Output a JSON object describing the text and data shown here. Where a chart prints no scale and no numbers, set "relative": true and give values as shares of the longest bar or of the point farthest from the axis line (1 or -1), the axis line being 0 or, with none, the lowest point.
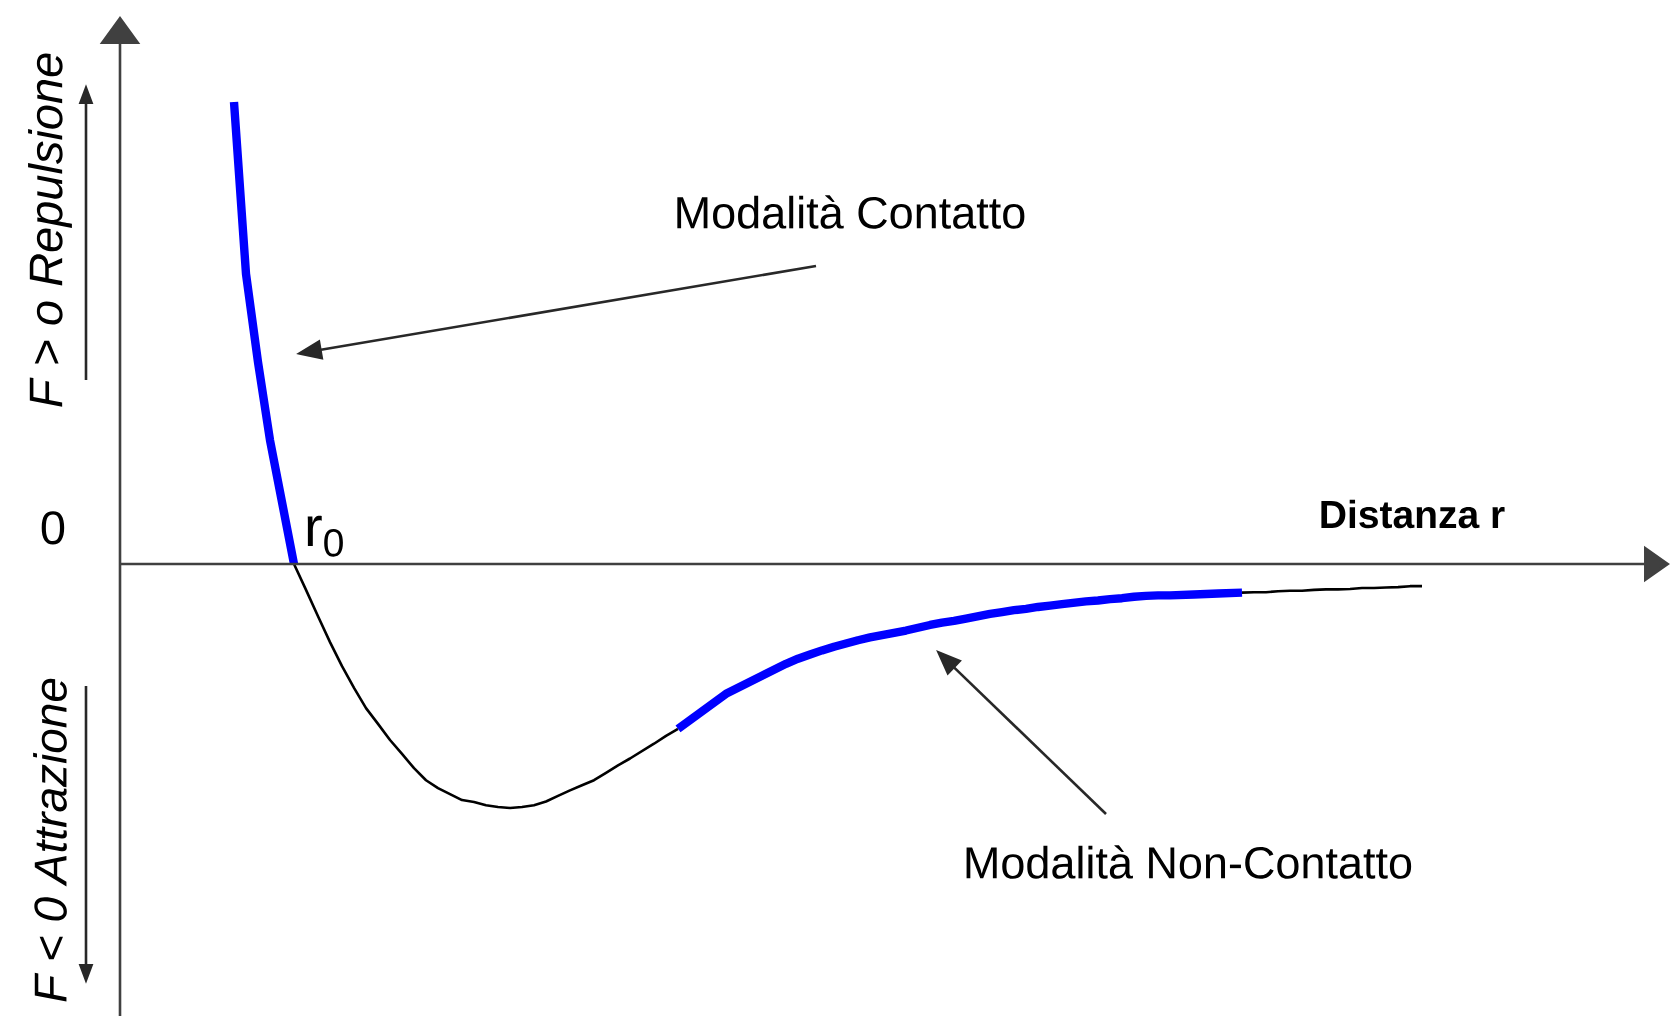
{
  "chart_data": {
    "type": "line",
    "relative": true,
    "categories": [
      null,
      null,
      null,
      null,
      null,
      null,
      null,
      null,
      null,
      null,
      null,
      null,
      null,
      null,
      null,
      null,
      null,
      null,
      null,
      null,
      null,
      null,
      null,
      null,
      null,
      null,
      null,
      null,
      null,
      null,
      null,
      null,
      null,
      null,
      null,
      null,
      null,
      null,
      null,
      null,
      null,
      null,
      null,
      null,
      null,
      null,
      null,
      null,
      null,
      null,
      null,
      null,
      null,
      null,
      null,
      null,
      null,
      null,
      null,
      null,
      null,
      null,
      null,
      null,
      null,
      null,
      null,
      null,
      null,
      null,
      null,
      null,
      null,
      null,
      null,
      null,
      null,
      null,
      null,
      null,
      null,
      null,
      null,
      null,
      null,
      null,
      null,
      null,
      null,
      null,
      null,
      null,
      null,
      null,
      null,
      null,
      null,
      null,
      null,
      null
    ],
    "series": [
      {
        "color": "#0000ff",
        "values": [
          1.0,
          0.628,
          0.437,
          0.268,
          0.134,
          0,
          null,
          null,
          null,
          null,
          null,
          null,
          null,
          null,
          null,
          null,
          null,
          null,
          null,
          null,
          null,
          null,
          null,
          null,
          null,
          null,
          null,
          null,
          null,
          null,
          null,
          null,
          null,
          null,
          null,
          null,
          null,
          null,
          null,
          null,
          null,
          null,
          null,
          null,
          null,
          null,
          null,
          null,
          null,
          null,
          null,
          null,
          null,
          null,
          null,
          null,
          null,
          null,
          null,
          null,
          null,
          null,
          null,
          null,
          null,
          null,
          null,
          null,
          null,
          null,
          null,
          null,
          null,
          null,
          null,
          null,
          null,
          null,
          null,
          null,
          null,
          null,
          null,
          null,
          null,
          null,
          null,
          null,
          null,
          null,
          null,
          null,
          null,
          null,
          null,
          null,
          null,
          null,
          null,
          null
        ]
      },
      {
        "color": "#000000",
        "values": [
          null,
          null,
          null,
          null,
          null,
          0,
          -0.056,
          -0.113,
          -0.169,
          -0.221,
          -0.268,
          -0.312,
          -0.346,
          -0.381,
          -0.411,
          -0.442,
          -0.468,
          -0.485,
          -0.498,
          -0.511,
          -0.515,
          -0.522,
          -0.526,
          -0.528,
          -0.526,
          -0.522,
          -0.514,
          -0.502,
          -0.49,
          -0.479,
          -0.468,
          -0.452,
          -0.436,
          -0.421,
          -0.405,
          -0.389,
          -0.372,
          -0.357,
          null,
          null,
          null,
          null,
          null,
          null,
          null,
          null,
          null,
          null,
          null,
          null,
          null,
          null,
          null,
          null,
          null,
          null,
          null,
          null,
          null,
          null,
          null,
          null,
          null,
          null,
          null,
          null,
          null,
          null,
          null,
          null,
          null,
          null,
          null,
          null,
          null,
          null,
          null,
          null,
          null,
          null,
          null,
          null,
          null,
          null,
          null,
          null,
          null,
          null,
          null,
          null,
          null,
          null,
          null,
          null,
          null,
          null,
          null,
          null,
          null,
          null
        ]
      },
      {
        "color": "#0000ff",
        "values": [
          null,
          null,
          null,
          null,
          null,
          null,
          null,
          null,
          null,
          null,
          null,
          null,
          null,
          null,
          null,
          null,
          null,
          null,
          null,
          null,
          null,
          null,
          null,
          null,
          null,
          null,
          null,
          null,
          null,
          null,
          null,
          null,
          null,
          null,
          null,
          null,
          null,
          -0.357,
          -0.338,
          -0.319,
          -0.3,
          -0.281,
          -0.268,
          -0.255,
          -0.242,
          -0.229,
          -0.216,
          -0.205,
          -0.196,
          -0.187,
          -0.179,
          -0.172,
          -0.165,
          -0.159,
          -0.154,
          -0.149,
          -0.144,
          -0.138,
          -0.132,
          -0.127,
          -0.123,
          -0.118,
          -0.113,
          -0.108,
          -0.104,
          -0.1,
          -0.097,
          -0.093,
          -0.09,
          -0.087,
          -0.084,
          -0.081,
          -0.079,
          -0.076,
          -0.074,
          -0.071,
          -0.069,
          -0.068,
          -0.068,
          -0.067,
          -0.066,
          -0.065,
          -0.064,
          -0.063,
          -0.062,
          null,
          null,
          null,
          null,
          null,
          null,
          null,
          null,
          null,
          null,
          null,
          null,
          null,
          null,
          null
        ]
      },
      {
        "color": "#000000",
        "values": [
          null,
          null,
          null,
          null,
          null,
          null,
          null,
          null,
          null,
          null,
          null,
          null,
          null,
          null,
          null,
          null,
          null,
          null,
          null,
          null,
          null,
          null,
          null,
          null,
          null,
          null,
          null,
          null,
          null,
          null,
          null,
          null,
          null,
          null,
          null,
          null,
          null,
          null,
          null,
          null,
          null,
          null,
          null,
          null,
          null,
          null,
          null,
          null,
          null,
          null,
          null,
          null,
          null,
          null,
          null,
          null,
          null,
          null,
          null,
          null,
          null,
          null,
          null,
          null,
          null,
          null,
          null,
          null,
          null,
          null,
          null,
          null,
          null,
          null,
          null,
          null,
          null,
          null,
          null,
          null,
          null,
          null,
          null,
          null,
          -0.062,
          -0.061,
          -0.061,
          -0.059,
          -0.058,
          -0.058,
          -0.056,
          -0.055,
          -0.055,
          -0.054,
          -0.052,
          -0.052,
          -0.051,
          -0.05,
          -0.048,
          -0.048
        ]
      }
    ],
    "xlabel": "Distanza r",
    "annotations": [
      "0",
      "r$_{0}$",
      "Modalità Contatto",
      "Modalità Non-Contatto",
      "F > o Repulsione",
      "F < 0 Attrazione"
    ],
    "marker": "none",
    "line_style": "solid"
  }
}
